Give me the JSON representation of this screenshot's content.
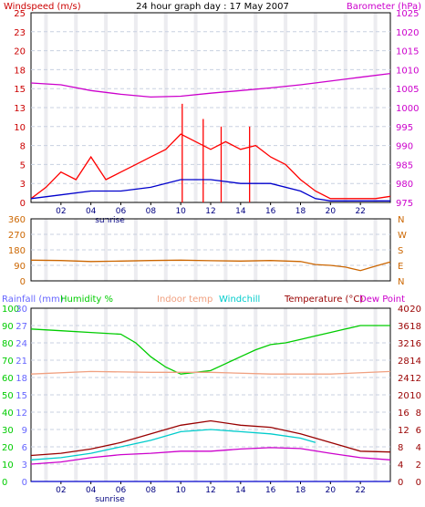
{
  "chart_data": [
    {
      "type": "line",
      "title": "24 hour graph day : 17 May 2007",
      "left_label": "Windspeed (m/s)",
      "right_label": "Barometer (hPa)",
      "left_ticks": [
        "0",
        "3",
        "5",
        "8",
        "10",
        "13",
        "15",
        "18",
        "20",
        "23",
        "25"
      ],
      "right_ticks": [
        "975",
        "980",
        "985",
        "990",
        "995",
        "1000",
        "1005",
        "1010",
        "1015",
        "1020",
        "1025"
      ],
      "x_ticks": [
        "02",
        "04",
        "06",
        "08",
        "10",
        "12",
        "14",
        "16",
        "18",
        "20",
        "22"
      ],
      "sunrise_label": "sunrise",
      "grid": true,
      "xlim": [
        0,
        24
      ],
      "ylim_left": [
        0,
        25
      ],
      "ylim_right": [
        975,
        1025
      ],
      "series": [
        {
          "key": "barometer",
          "axis": "right",
          "color": "#cc00cc",
          "points": [
            [
              0,
              1006.5
            ],
            [
              2,
              1006
            ],
            [
              4,
              1004.5
            ],
            [
              6,
              1003.5
            ],
            [
              8,
              1002.8
            ],
            [
              10,
              1003
            ],
            [
              12,
              1003.8
            ],
            [
              14,
              1004.5
            ],
            [
              16,
              1005.2
            ],
            [
              18,
              1006
            ],
            [
              20,
              1007
            ],
            [
              22,
              1008
            ],
            [
              24,
              1009
            ]
          ]
        },
        {
          "key": "wind_gust",
          "axis": "left",
          "color": "#ff0000",
          "points": [
            [
              0,
              0.5
            ],
            [
              1,
              2
            ],
            [
              2,
              4
            ],
            [
              3,
              3
            ],
            [
              4,
              6
            ],
            [
              5,
              3
            ],
            [
              6,
              4
            ],
            [
              7,
              5
            ],
            [
              8,
              6
            ],
            [
              9,
              7
            ],
            [
              10,
              9
            ],
            [
              11,
              8
            ],
            [
              12,
              7
            ],
            [
              13,
              8
            ],
            [
              14,
              7
            ],
            [
              15,
              7.5
            ],
            [
              16,
              6
            ],
            [
              17,
              5
            ],
            [
              18,
              3
            ],
            [
              19,
              1.5
            ],
            [
              20,
              0.5
            ],
            [
              21,
              0.5
            ],
            [
              22,
              0.5
            ],
            [
              23,
              0.5
            ],
            [
              24,
              0.8
            ]
          ]
        },
        {
          "key": "wind_peaks",
          "axis": "left",
          "color": "#ff0000",
          "points": [
            [
              10.1,
              13
            ],
            [
              11.5,
              11
            ],
            [
              14.6,
              10
            ],
            [
              12.7,
              10
            ]
          ]
        },
        {
          "key": "wind_avg",
          "axis": "left",
          "color": "#0000cc",
          "points": [
            [
              0,
              0.5
            ],
            [
              2,
              1
            ],
            [
              4,
              1.5
            ],
            [
              6,
              1.5
            ],
            [
              8,
              2
            ],
            [
              10,
              3
            ],
            [
              12,
              3
            ],
            [
              14,
              2.5
            ],
            [
              16,
              2.5
            ],
            [
              18,
              1.5
            ],
            [
              19,
              0.5
            ],
            [
              20,
              0.2
            ],
            [
              22,
              0.2
            ],
            [
              24,
              0.2
            ]
          ]
        }
      ]
    },
    {
      "type": "line",
      "left_ticks": [
        "0",
        "90",
        "180",
        "270",
        "360"
      ],
      "right_ticks": [
        "N",
        "E",
        "S",
        "W",
        "N"
      ],
      "x_ticks": [],
      "ylim": [
        0,
        360
      ],
      "series": [
        {
          "key": "wind_direction",
          "color": "#cc6600",
          "points": [
            [
              0,
              120
            ],
            [
              2,
              118
            ],
            [
              4,
              112
            ],
            [
              6,
              115
            ],
            [
              8,
              118
            ],
            [
              10,
              120
            ],
            [
              12,
              117
            ],
            [
              14,
              115
            ],
            [
              16,
              118
            ],
            [
              18,
              112
            ],
            [
              19,
              95
            ],
            [
              20,
              90
            ],
            [
              21,
              80
            ],
            [
              22,
              60
            ],
            [
              23,
              85
            ],
            [
              24,
              110
            ]
          ]
        }
      ]
    },
    {
      "type": "line",
      "left_ticks": [
        "0",
        "10",
        "20",
        "30",
        "40",
        "50",
        "60",
        "70",
        "80",
        "90",
        "100"
      ],
      "left2_ticks": [
        "0",
        "3",
        "6",
        "9",
        "12",
        "15",
        "18",
        "21",
        "24",
        "27",
        "30"
      ],
      "right_ticks": [
        "0",
        "4",
        "8",
        "12",
        "16",
        "20",
        "24",
        "28",
        "32",
        "36",
        "40"
      ],
      "right2_ticks": [
        "0",
        "2",
        "4",
        "6",
        "8",
        "10",
        "12",
        "14",
        "16",
        "18",
        "20"
      ],
      "x_ticks": [
        "02",
        "04",
        "06",
        "08",
        "10",
        "12",
        "14",
        "16",
        "18",
        "20",
        "22"
      ],
      "sunrise_label": "sunrise",
      "legend": [
        "Rainfall (mm)",
        "Humidity %",
        "Indoor temp",
        "Windchill",
        "Temperature (°C)",
        "Dew Point"
      ],
      "ylim_left": [
        0,
        100
      ],
      "ylim_temp": [
        0,
        40
      ],
      "series": [
        {
          "key": "humidity",
          "axis": "left",
          "color": "#00cc00",
          "points": [
            [
              0,
              88
            ],
            [
              2,
              87
            ],
            [
              4,
              86
            ],
            [
              6,
              85
            ],
            [
              7,
              80
            ],
            [
              8,
              72
            ],
            [
              9,
              66
            ],
            [
              10,
              62
            ],
            [
              11,
              63
            ],
            [
              12,
              64
            ],
            [
              13,
              68
            ],
            [
              14,
              72
            ],
            [
              15,
              76
            ],
            [
              16,
              79
            ],
            [
              17,
              80
            ],
            [
              18,
              82
            ],
            [
              19,
              84
            ],
            [
              20,
              86
            ],
            [
              21,
              88
            ],
            [
              22,
              90
            ],
            [
              24,
              90
            ]
          ]
        },
        {
          "key": "indoor_temp",
          "axis": "temp",
          "color": "#f0a080",
          "points": [
            [
              0,
              24.8
            ],
            [
              4,
              25.4
            ],
            [
              8,
              25.2
            ],
            [
              12,
              25.2
            ],
            [
              16,
              24.8
            ],
            [
              20,
              24.8
            ],
            [
              24,
              25.4
            ]
          ]
        },
        {
          "key": "temperature",
          "axis": "temp",
          "color": "#990000",
          "points": [
            [
              0,
              6
            ],
            [
              2,
              6.5
            ],
            [
              4,
              7.5
            ],
            [
              6,
              9
            ],
            [
              8,
              11
            ],
            [
              10,
              13
            ],
            [
              12,
              14
            ],
            [
              14,
              13
            ],
            [
              16,
              12.5
            ],
            [
              18,
              11
            ],
            [
              20,
              9
            ],
            [
              22,
              7
            ],
            [
              24,
              6.8
            ]
          ]
        },
        {
          "key": "windchill",
          "axis": "temp",
          "color": "#00cccc",
          "points": [
            [
              0,
              5
            ],
            [
              2,
              5.5
            ],
            [
              4,
              6.5
            ],
            [
              6,
              8
            ],
            [
              8,
              9.5
            ],
            [
              10,
              11.5
            ],
            [
              12,
              12
            ],
            [
              14,
              11.5
            ],
            [
              16,
              11
            ],
            [
              18,
              10
            ],
            [
              19,
              9
            ]
          ]
        },
        {
          "key": "dew_point",
          "axis": "temp",
          "color": "#cc00cc",
          "points": [
            [
              0,
              4
            ],
            [
              2,
              4.5
            ],
            [
              4,
              5.5
            ],
            [
              6,
              6.2
            ],
            [
              8,
              6.5
            ],
            [
              10,
              7
            ],
            [
              12,
              7
            ],
            [
              14,
              7.5
            ],
            [
              16,
              7.8
            ],
            [
              18,
              7.6
            ],
            [
              20,
              6.5
            ],
            [
              22,
              5.5
            ],
            [
              24,
              5
            ]
          ]
        },
        {
          "key": "rainfall",
          "axis": "left",
          "color": "#0000cc",
          "points": [
            [
              0,
              0
            ],
            [
              24,
              0
            ]
          ]
        }
      ]
    }
  ],
  "colors": {
    "panel_border": "#000000",
    "grid": "#c8d0e0",
    "night_band": "#ececf0",
    "windspeed_label": "#cc0000",
    "barometer_label": "#cc00cc",
    "direction_label": "#cc6600",
    "rainfall_label": "#6666ff",
    "humidity_label": "#00cc00",
    "indoor_label": "#f0a080",
    "windchill_label": "#00cccc",
    "temperature_label": "#990000",
    "dewpoint_label": "#cc00cc"
  }
}
